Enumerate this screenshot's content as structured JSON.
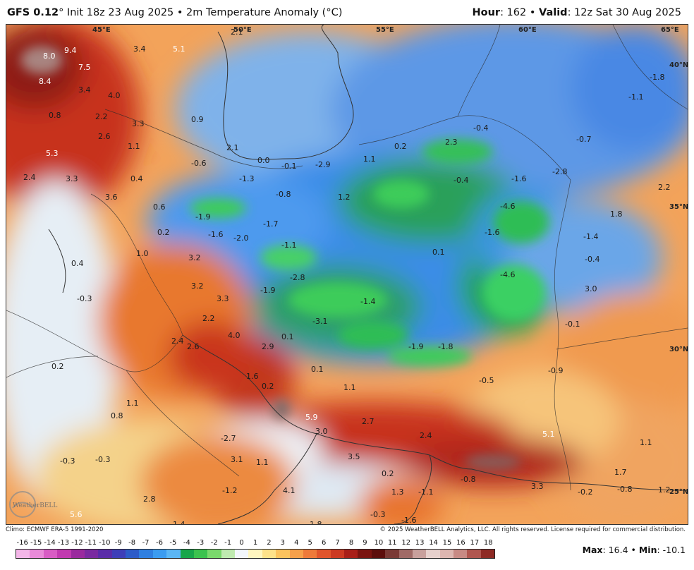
{
  "header": {
    "model": "GFS 0.12",
    "deg": "°",
    "init_text": " Init 18z 23 Aug 2025 • 2m Temperature Anomaly (°C)",
    "hour_label": "Hour",
    "hour_value": ": 162 • ",
    "valid_label": "Valid",
    "valid_value": ": 12z Sat 30 Aug 2025"
  },
  "map": {
    "lon_labels": [
      "45°E",
      "50°E",
      "55°E",
      "60°E",
      "65°E"
    ],
    "lat_labels": [
      "40°N",
      "35°N",
      "30°N",
      "25°N"
    ],
    "values": [
      "8.0",
      "9.4",
      "5.1",
      "3.4",
      "7.5",
      "8.4",
      "3.4",
      "4.0",
      "2.1",
      "0.8",
      "2.2",
      "3.3",
      "2.6",
      "1.1",
      "0.9",
      "5.3",
      "2.1",
      "2.4",
      "3.3",
      "-0.6",
      "-1.3",
      "0.0",
      "-0.1",
      "-2.9",
      "1.1",
      "0.2",
      "2.3",
      "-0.4",
      "-0.4",
      "-1.6",
      "-2.8",
      "-0.7",
      "-1.1",
      "-1.8",
      "0.4",
      "-0.8",
      "1.2",
      "2.2",
      "3.6",
      "0.6",
      "-1.9",
      "-1.6",
      "-1.7",
      "-2.0",
      "-4.6",
      "1.8",
      "-1.6",
      "-1.4",
      "0.2",
      "-1.1",
      "0.1",
      "-0.4",
      "1.0",
      "3.2",
      "0.4",
      "-2.8",
      "-4.6",
      "3.2",
      "-1.9",
      "-0.3",
      "3.3",
      "-1.4",
      "3.0",
      "2.2",
      "-3.1",
      "-0.1",
      "4.0",
      "0.1",
      "2.4",
      "2.6",
      "2.9",
      "-1.9",
      "-1.8",
      "-0.9",
      "0.2",
      "1.6",
      "0.1",
      "0.2",
      "1.1",
      "-0.5",
      "1.1",
      "0.8",
      "5.9",
      "2.7",
      "3.0",
      "2.4",
      "5.1",
      "-2.7",
      "-0.3",
      "1.1",
      "-0.3",
      "3.1",
      "1.1",
      "0.2",
      "3.5",
      "1.7",
      "-0.8",
      "3.3",
      "-1.2",
      "4.1",
      "-1.1",
      "1.3",
      "-0.2",
      "-0.8",
      "1.2",
      "2.8",
      "-0.3",
      "5.6",
      "-1.6",
      "1.8",
      "-1.4",
      "-0.2"
    ]
  },
  "footer": {
    "climo": "Climo: ECMWF ERA-5 1991-2020",
    "copyright": "© 2025 WeatherBELL Analytics, LLC. All rights reserved. License required for commercial distribution."
  },
  "colorbar": {
    "labels": [
      "-16",
      "-15",
      "-14",
      "-13",
      "-12",
      "-11",
      "-10",
      "-9",
      "-8",
      "-7",
      "-6",
      "-5",
      "-4",
      "-3",
      "-2",
      "-1",
      "0",
      "1",
      "2",
      "3",
      "4",
      "5",
      "6",
      "7",
      "8",
      "9",
      "10",
      "11",
      "12",
      "13",
      "14",
      "15",
      "16",
      "17",
      "18"
    ],
    "colors": [
      "#f4b6e8",
      "#e88ad8",
      "#d85cc4",
      "#c13ab0",
      "#9a2a9e",
      "#7a2aa0",
      "#5a2ca8",
      "#3e3eb8",
      "#2d5cc8",
      "#2f7fe0",
      "#3b9cf0",
      "#5bb6f4",
      "#18a64a",
      "#3cc24e",
      "#7ad86c",
      "#bfeab0",
      "#f2f6fb",
      "#fff6c0",
      "#fde28a",
      "#fbc35e",
      "#f6a04a",
      "#ee7a3a",
      "#e0552c",
      "#cc3a22",
      "#a81f18",
      "#7a1410",
      "#5c0e0c",
      "#7a3a36",
      "#a06a66",
      "#c8a09c",
      "#e6d0cc",
      "#ddb6b0",
      "#c88a84",
      "#b0564f",
      "#8e2a24"
    ],
    "max_label": "Max",
    "max_value": ": 16.4 • ",
    "min_label": "Min",
    "min_value": ": -10.1"
  },
  "logo_text": "WeatherBELL"
}
